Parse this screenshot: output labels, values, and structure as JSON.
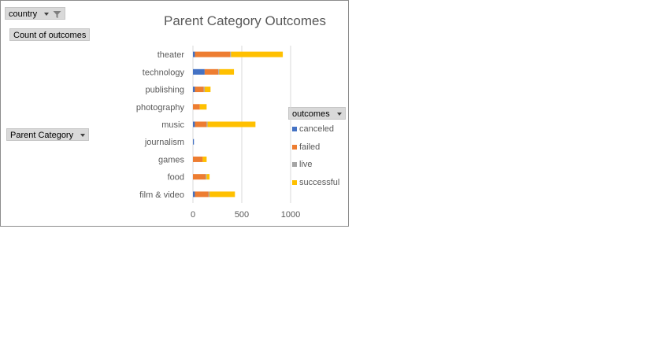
{
  "filters": {
    "country_label": "country",
    "values_label": "Count of outcomes",
    "axis_field_label": "Parent Category",
    "legend_field_label": "outcomes"
  },
  "colors": {
    "canceled": "#4472c4",
    "failed": "#ed7d31",
    "live": "#a5a5a5",
    "successful": "#ffc000"
  },
  "chart_data": {
    "type": "bar",
    "orientation": "horizontal",
    "stacked": true,
    "title": "Parent Category Outcomes",
    "categories": [
      "theater",
      "technology",
      "publishing",
      "photography",
      "music",
      "journalism",
      "games",
      "food",
      "film & video"
    ],
    "series": [
      {
        "name": "canceled",
        "values": [
          20,
          120,
          20,
          0,
          20,
          10,
          0,
          0,
          20
        ]
      },
      {
        "name": "failed",
        "values": [
          360,
          140,
          90,
          70,
          120,
          0,
          100,
          130,
          140
        ]
      },
      {
        "name": "live",
        "values": [
          10,
          10,
          10,
          0,
          10,
          0,
          0,
          10,
          10
        ]
      },
      {
        "name": "successful",
        "values": [
          530,
          150,
          60,
          70,
          490,
          0,
          40,
          30,
          260
        ]
      }
    ],
    "xlim": [
      0,
      1000
    ],
    "xticks": [
      "0",
      "500",
      "1000"
    ],
    "gridlines": true,
    "legend_position": "right"
  }
}
